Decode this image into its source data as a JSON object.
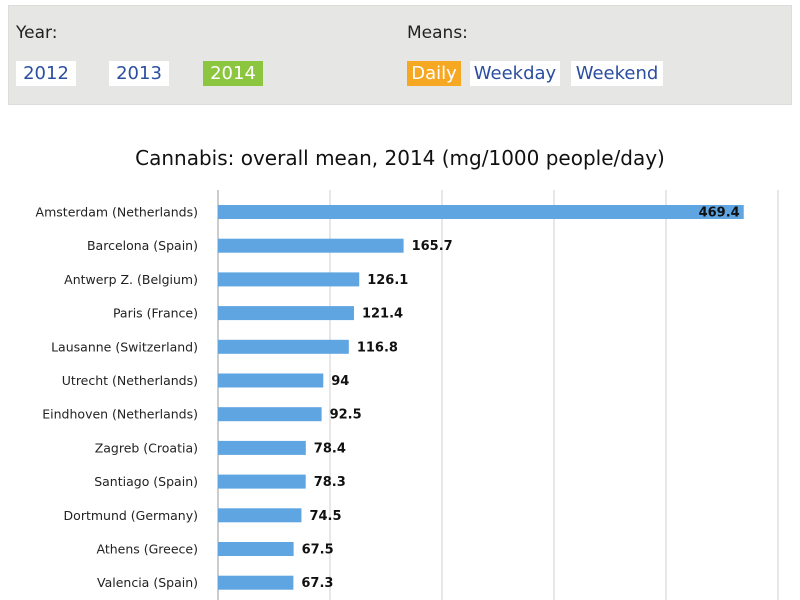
{
  "year_filter": {
    "label": "Year:",
    "options": [
      "2012",
      "2013",
      "2014"
    ],
    "selected": "2014"
  },
  "means_filter": {
    "label": "Means:",
    "options": [
      "Daily",
      "Weekday",
      "Weekend"
    ],
    "selected": "Daily"
  },
  "colors": {
    "bar": "#5ea5e2",
    "year_active": "#8cc63f",
    "mean_active": "#f7a823",
    "option_text": "#2b4ea0",
    "panel_bg": "#e6e6e4"
  },
  "chart_data": {
    "type": "bar",
    "orientation": "horizontal",
    "title": "Cannabis: overall mean, 2014 (mg/1000 people/day)",
    "categories": [
      "Amsterdam (Netherlands)",
      "Barcelona (Spain)",
      "Antwerp Z. (Belgium)",
      "Paris (France)",
      "Lausanne (Switzerland)",
      "Utrecht (Netherlands)",
      "Eindhoven (Netherlands)",
      "Zagreb (Croatia)",
      "Santiago (Spain)",
      "Dortmund (Germany)",
      "Athens (Greece)",
      "Valencia (Spain)"
    ],
    "values": [
      469.4,
      165.7,
      126.1,
      121.4,
      116.8,
      94,
      92.5,
      78.4,
      78.3,
      74.5,
      67.5,
      67.3
    ],
    "value_labels": [
      "469.4",
      "165.7",
      "126.1",
      "121.4",
      "116.8",
      "94",
      "92.5",
      "78.4",
      "78.3",
      "74.5",
      "67.5",
      "67.3"
    ],
    "xlim": [
      0,
      500
    ],
    "grid": true
  }
}
